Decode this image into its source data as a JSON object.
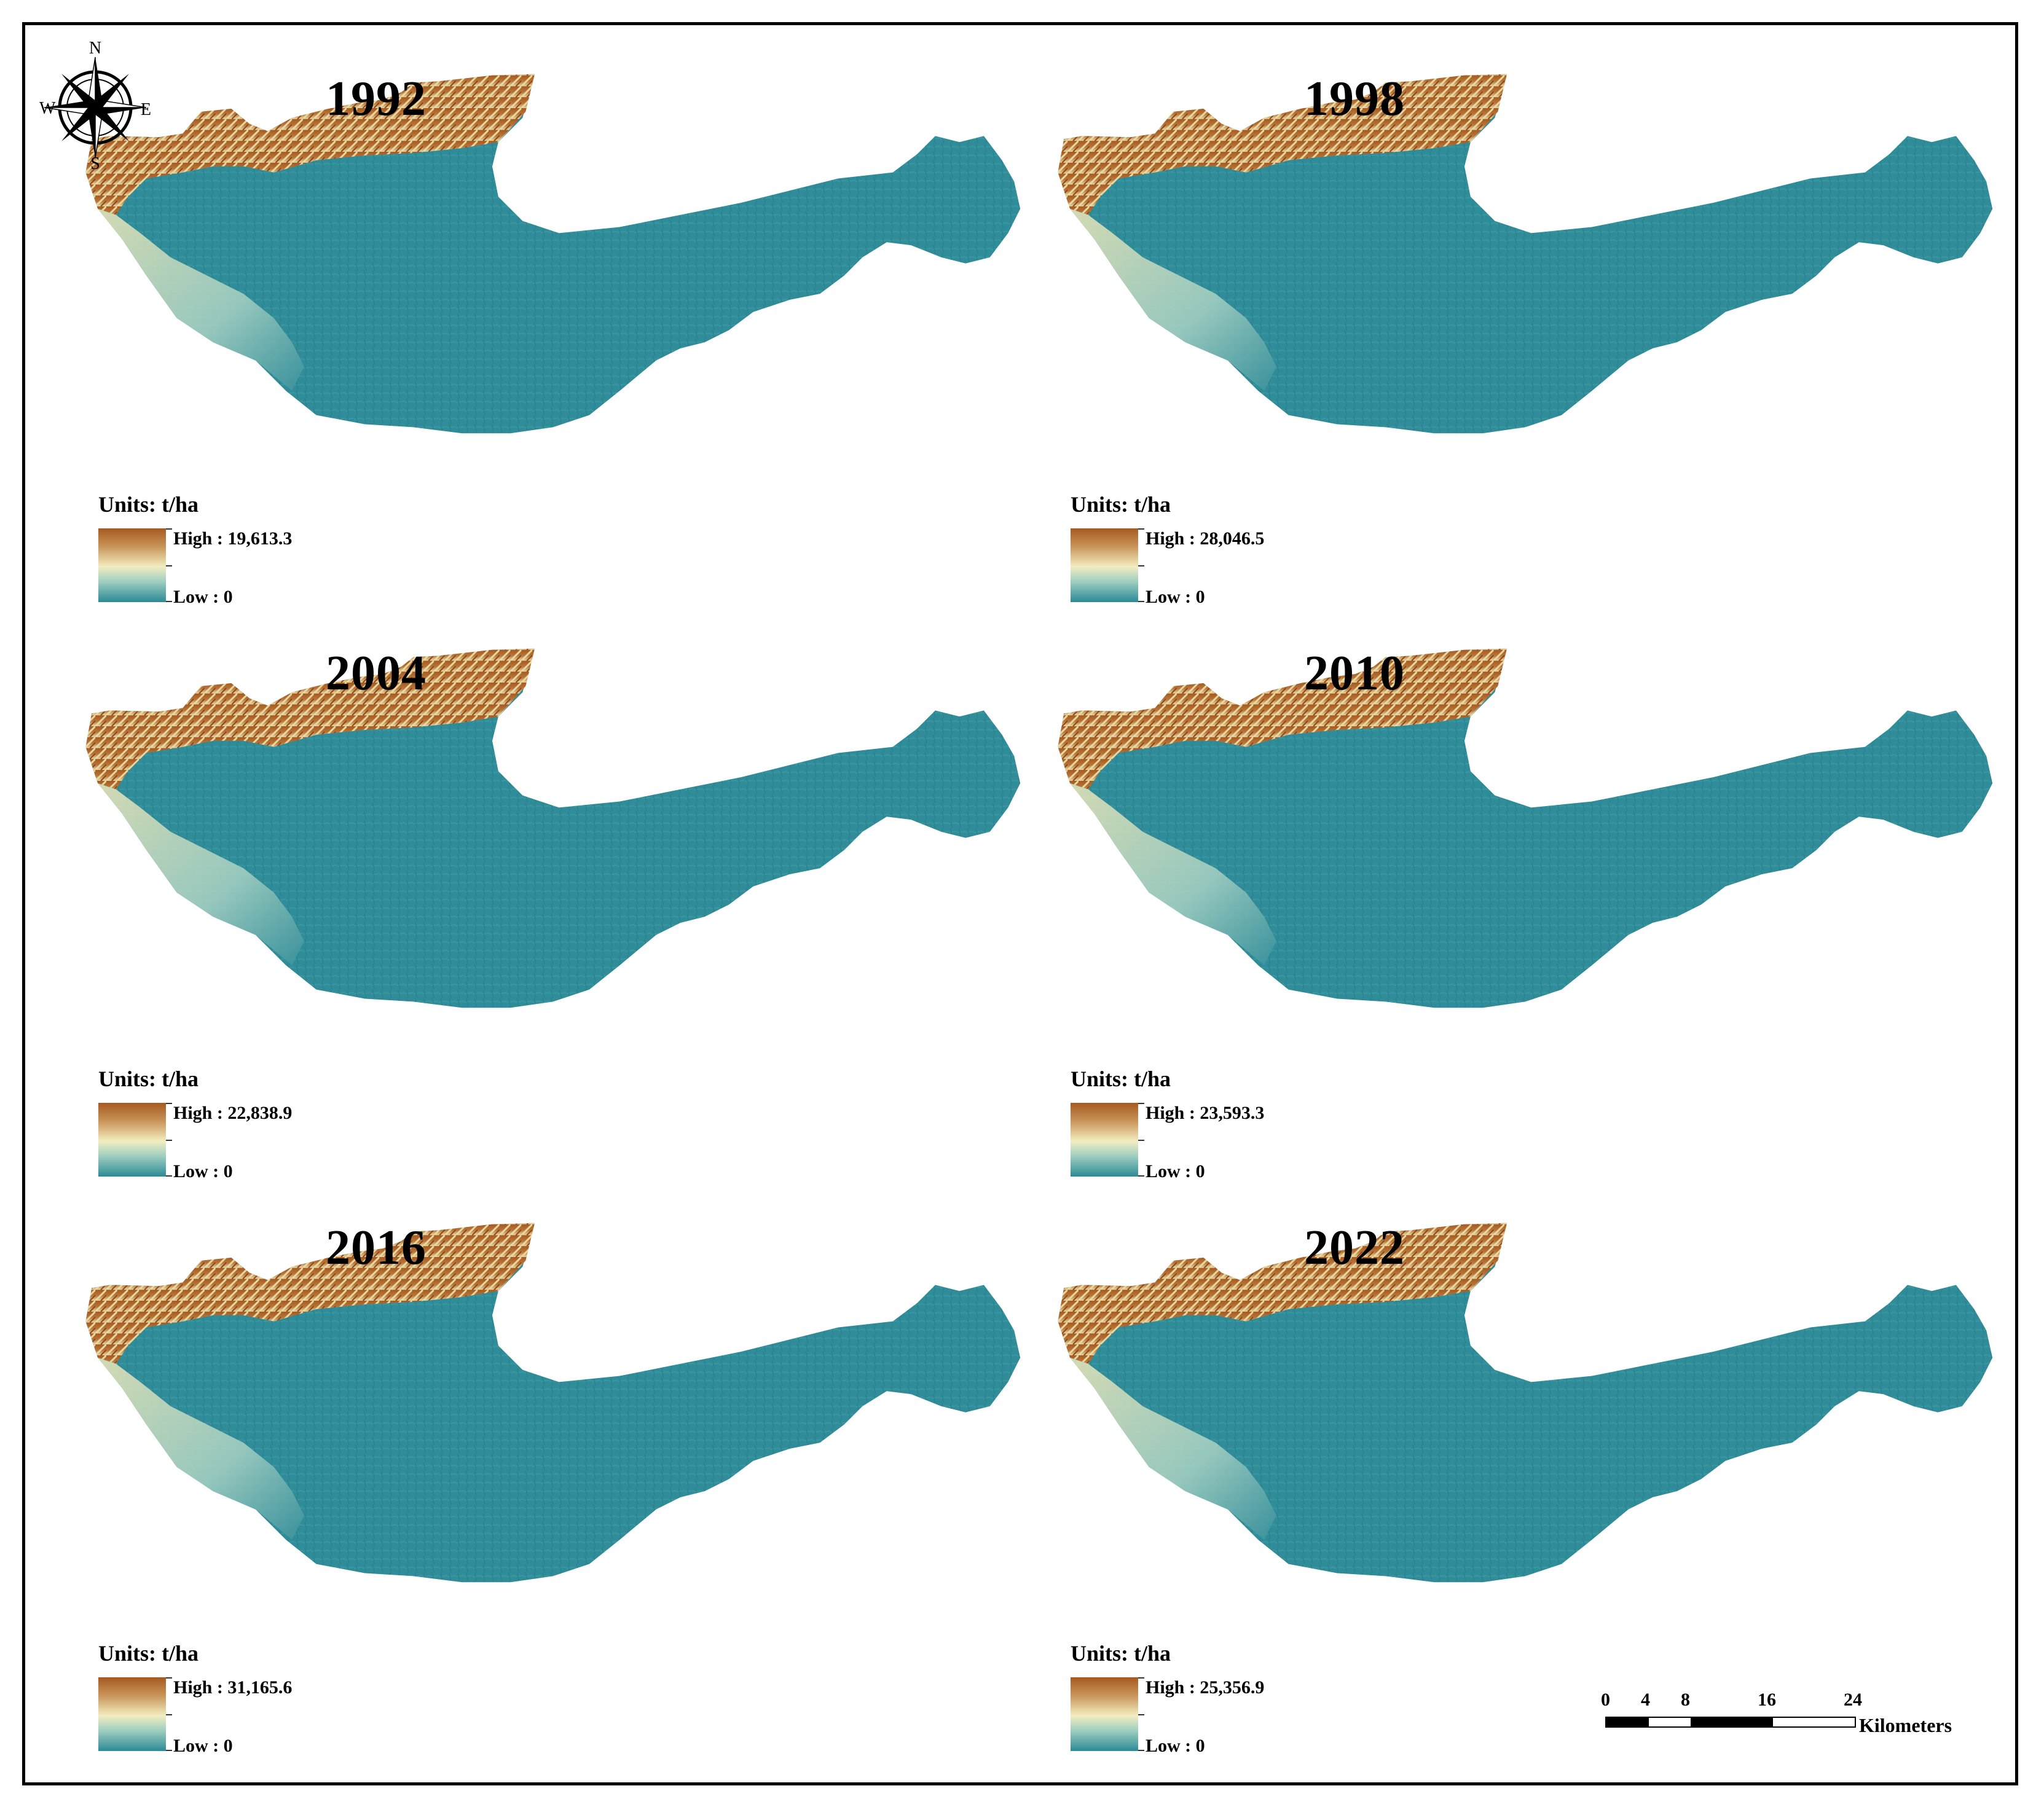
{
  "figure": {
    "units_label": "Units: t/ha",
    "colors": {
      "high": "#a6591f",
      "mid": "#f2edc0",
      "low": "#2b8a96"
    },
    "panels": [
      {
        "year": "1992",
        "high": "High : 19,613.3",
        "low": "Low : 0"
      },
      {
        "year": "1998",
        "high": "High : 28,046.5",
        "low": "Low : 0"
      },
      {
        "year": "2004",
        "high": "High : 22,838.9",
        "low": "Low : 0"
      },
      {
        "year": "2010",
        "high": "High : 23,593.3",
        "low": "Low : 0"
      },
      {
        "year": "2016",
        "high": "High : 31,165.6",
        "low": "Low : 0"
      },
      {
        "year": "2022",
        "high": "High : 25,356.9",
        "low": "Low : 0"
      }
    ]
  },
  "compass": {
    "n": "N",
    "s": "S",
    "e": "E",
    "w": "W"
  },
  "scalebar": {
    "ticks": [
      "0",
      "4",
      "8",
      "16",
      "24"
    ],
    "unit": "Kilometers"
  }
}
